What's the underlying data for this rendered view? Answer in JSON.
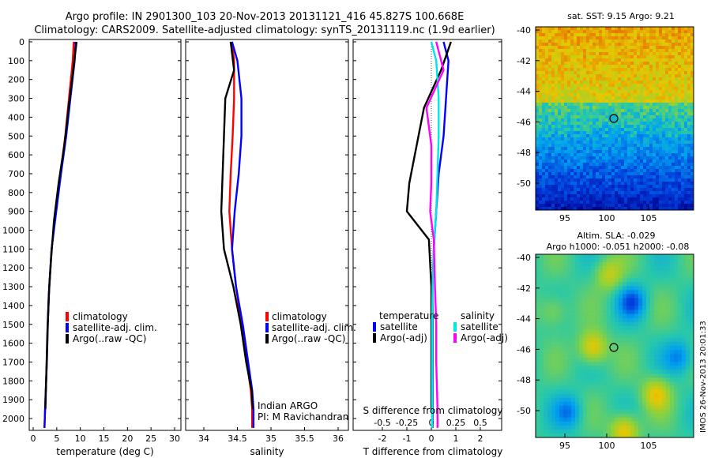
{
  "title": {
    "line1": "Argo profile: IN 2901300_103 20-Nov-2013 20131121_416 45.827S 100.668E",
    "line2": "Climatology: CARS2009. Satellite-adjusted climatology: synTS_20131119.nc (1.9d earlier)"
  },
  "colors": {
    "climatology": "#ff0000",
    "satellite": "#0000ff",
    "argo": "#000000",
    "sat_salinity": "#00e5e5",
    "argo_adj": "#ff00ff"
  },
  "depth_axis": {
    "ticks": [
      "0",
      "100",
      "200",
      "300",
      "400",
      "500",
      "600",
      "700",
      "800",
      "900",
      "1000",
      "1100",
      "1200",
      "1300",
      "1400",
      "1500",
      "1600",
      "1700",
      "1800",
      "1900",
      "2000"
    ]
  },
  "temp_panel": {
    "xlabel": "temperature (deg C)",
    "xticks": [
      "0",
      "5",
      "10",
      "15",
      "20",
      "25",
      "30"
    ],
    "legend": [
      "climatology",
      "satellite-adj. clim.",
      "Argo(..raw -QC)"
    ]
  },
  "sal_panel": {
    "xlabel": "salinity",
    "xticks": [
      "34",
      "34.5",
      "35",
      "35.5",
      "36"
    ],
    "legend": [
      "climatology",
      "satellite-adj. clim.",
      "Argo(..raw -QC)"
    ],
    "note1": "Indian ARGO",
    "note2": "PI: M Ravichandran"
  },
  "diff_panel": {
    "xlabel": "T difference from climatology",
    "top_label": "S difference from climatology",
    "t_ticks": [
      "-2",
      "-1",
      "0",
      "1",
      "2"
    ],
    "s_ticks": [
      "-0.5",
      "-0.25",
      "0",
      "0.25",
      "0.5"
    ],
    "legend_head_t": "temperature",
    "legend_head_s": "salinity",
    "legend_t": [
      "satellite",
      "Argo(-adj)"
    ],
    "legend_s": [
      "satellite",
      "Argo(-adj)"
    ]
  },
  "sst_map": {
    "title": "sat. SST: 9.15 Argo: 9.21",
    "yticks": [
      "-40",
      "-42",
      "-44",
      "-46",
      "-48",
      "-50"
    ],
    "xticks": [
      "95",
      "100",
      "105"
    ]
  },
  "sla_map": {
    "title1": "Altim. SLA: -0.029",
    "title2": "Argo h1000: -0.051 h2000: -0.08",
    "yticks": [
      "-40",
      "-42",
      "-44",
      "-46",
      "-48",
      "-50"
    ],
    "xticks": [
      "95",
      "100",
      "105"
    ]
  },
  "credit": "IMOS 26-Nov-2013 20:01:33",
  "chart_data": [
    {
      "type": "line",
      "title": "",
      "xlabel": "temperature (deg C)",
      "ylabel": "",
      "xlim": [
        -2,
        31
      ],
      "ylim": [
        2060,
        0
      ],
      "series": [
        {
          "name": "climatology",
          "x": [
            8.6,
            8.4,
            7.6,
            6.8,
            5.8,
            4.8,
            3.9,
            3.4,
            3.1,
            2.9,
            2.6,
            2.4
          ],
          "y": [
            0,
            100,
            300,
            500,
            700,
            900,
            1100,
            1300,
            1500,
            1700,
            1900,
            2050
          ]
        },
        {
          "name": "satellite-adj. clim.",
          "x": [
            9.0,
            8.8,
            7.9,
            7.0,
            5.9,
            4.9,
            3.9,
            3.4,
            3.1,
            2.9,
            2.6,
            2.4
          ],
          "y": [
            0,
            100,
            300,
            500,
            700,
            900,
            1100,
            1300,
            1500,
            1700,
            1900,
            2050
          ]
        },
        {
          "name": "Argo(..raw -QC)",
          "x": [
            9.2,
            8.5,
            7.5,
            6.6,
            5.4,
            4.4,
            3.8,
            3.3,
            3.0,
            2.8,
            2.6
          ],
          "y": [
            0,
            150,
            350,
            550,
            750,
            950,
            1150,
            1350,
            1550,
            1750,
            1950
          ]
        }
      ]
    },
    {
      "type": "line",
      "title": "",
      "xlabel": "salinity",
      "ylabel": "",
      "xlim": [
        33.8,
        36.1
      ],
      "ylim": [
        2060,
        0
      ],
      "series": [
        {
          "name": "climatology",
          "x": [
            34.42,
            34.45,
            34.45,
            34.43,
            34.4,
            34.38,
            34.42,
            34.48,
            34.56,
            34.64,
            34.7,
            34.72,
            34.72
          ],
          "y": [
            0,
            100,
            300,
            500,
            700,
            900,
            1100,
            1300,
            1500,
            1700,
            1850,
            1950,
            2050
          ]
        },
        {
          "name": "satellite-adj. clim.",
          "x": [
            34.42,
            34.5,
            34.56,
            34.56,
            34.52,
            34.46,
            34.42,
            34.48,
            34.58,
            34.66,
            34.72,
            34.74,
            34.74
          ],
          "y": [
            0,
            100,
            300,
            500,
            700,
            900,
            1100,
            1300,
            1500,
            1700,
            1850,
            1950,
            2050
          ]
        },
        {
          "name": "Argo(..raw -QC)",
          "x": [
            34.4,
            34.45,
            34.32,
            34.3,
            34.28,
            34.26,
            34.3,
            34.44,
            34.55,
            34.63,
            34.71,
            34.73
          ],
          "y": [
            0,
            150,
            300,
            500,
            700,
            900,
            1100,
            1300,
            1500,
            1700,
            1850,
            1950
          ]
        }
      ]
    },
    {
      "type": "line",
      "title": "",
      "xlabel": "T difference from climatology",
      "ylabel": "",
      "xlim": [
        -2.5,
        2.5
      ],
      "ylim": [
        2060,
        0
      ],
      "series": [
        {
          "name": "temperature satellite",
          "x": [
            0.5,
            0.7,
            0.6,
            0.5,
            0.3,
            0.2,
            0.1,
            0.05,
            0.05,
            0.05,
            0.05,
            0.05
          ],
          "y": [
            0,
            100,
            300,
            500,
            700,
            900,
            1100,
            1300,
            1500,
            1700,
            1900,
            2050
          ]
        },
        {
          "name": "temperature Argo(-adj)",
          "x": [
            0.8,
            0.4,
            -0.3,
            -0.6,
            -0.9,
            -1.0,
            -0.1,
            0.0,
            0.0,
            0.0,
            0.0
          ],
          "y": [
            0,
            150,
            350,
            550,
            750,
            900,
            1050,
            1300,
            1500,
            1700,
            1950
          ]
        },
        {
          "name": "salinity satellite",
          "x": [
            0.0,
            0.2,
            0.3,
            0.3,
            0.25,
            0.2,
            0.1,
            0.05,
            0.03,
            0.03,
            0.03,
            0.03
          ],
          "y": [
            0,
            100,
            300,
            500,
            700,
            900,
            1100,
            1300,
            1500,
            1700,
            1900,
            2050
          ]
        },
        {
          "name": "salinity Argo(-adj)",
          "x": [
            0.2,
            0.5,
            -0.2,
            0.0,
            0.0,
            -0.05,
            0.1,
            0.15,
            0.2,
            0.2,
            0.25,
            0.25
          ],
          "y": [
            0,
            150,
            350,
            550,
            750,
            900,
            1050,
            1300,
            1500,
            1700,
            1950,
            2050
          ]
        }
      ]
    }
  ]
}
